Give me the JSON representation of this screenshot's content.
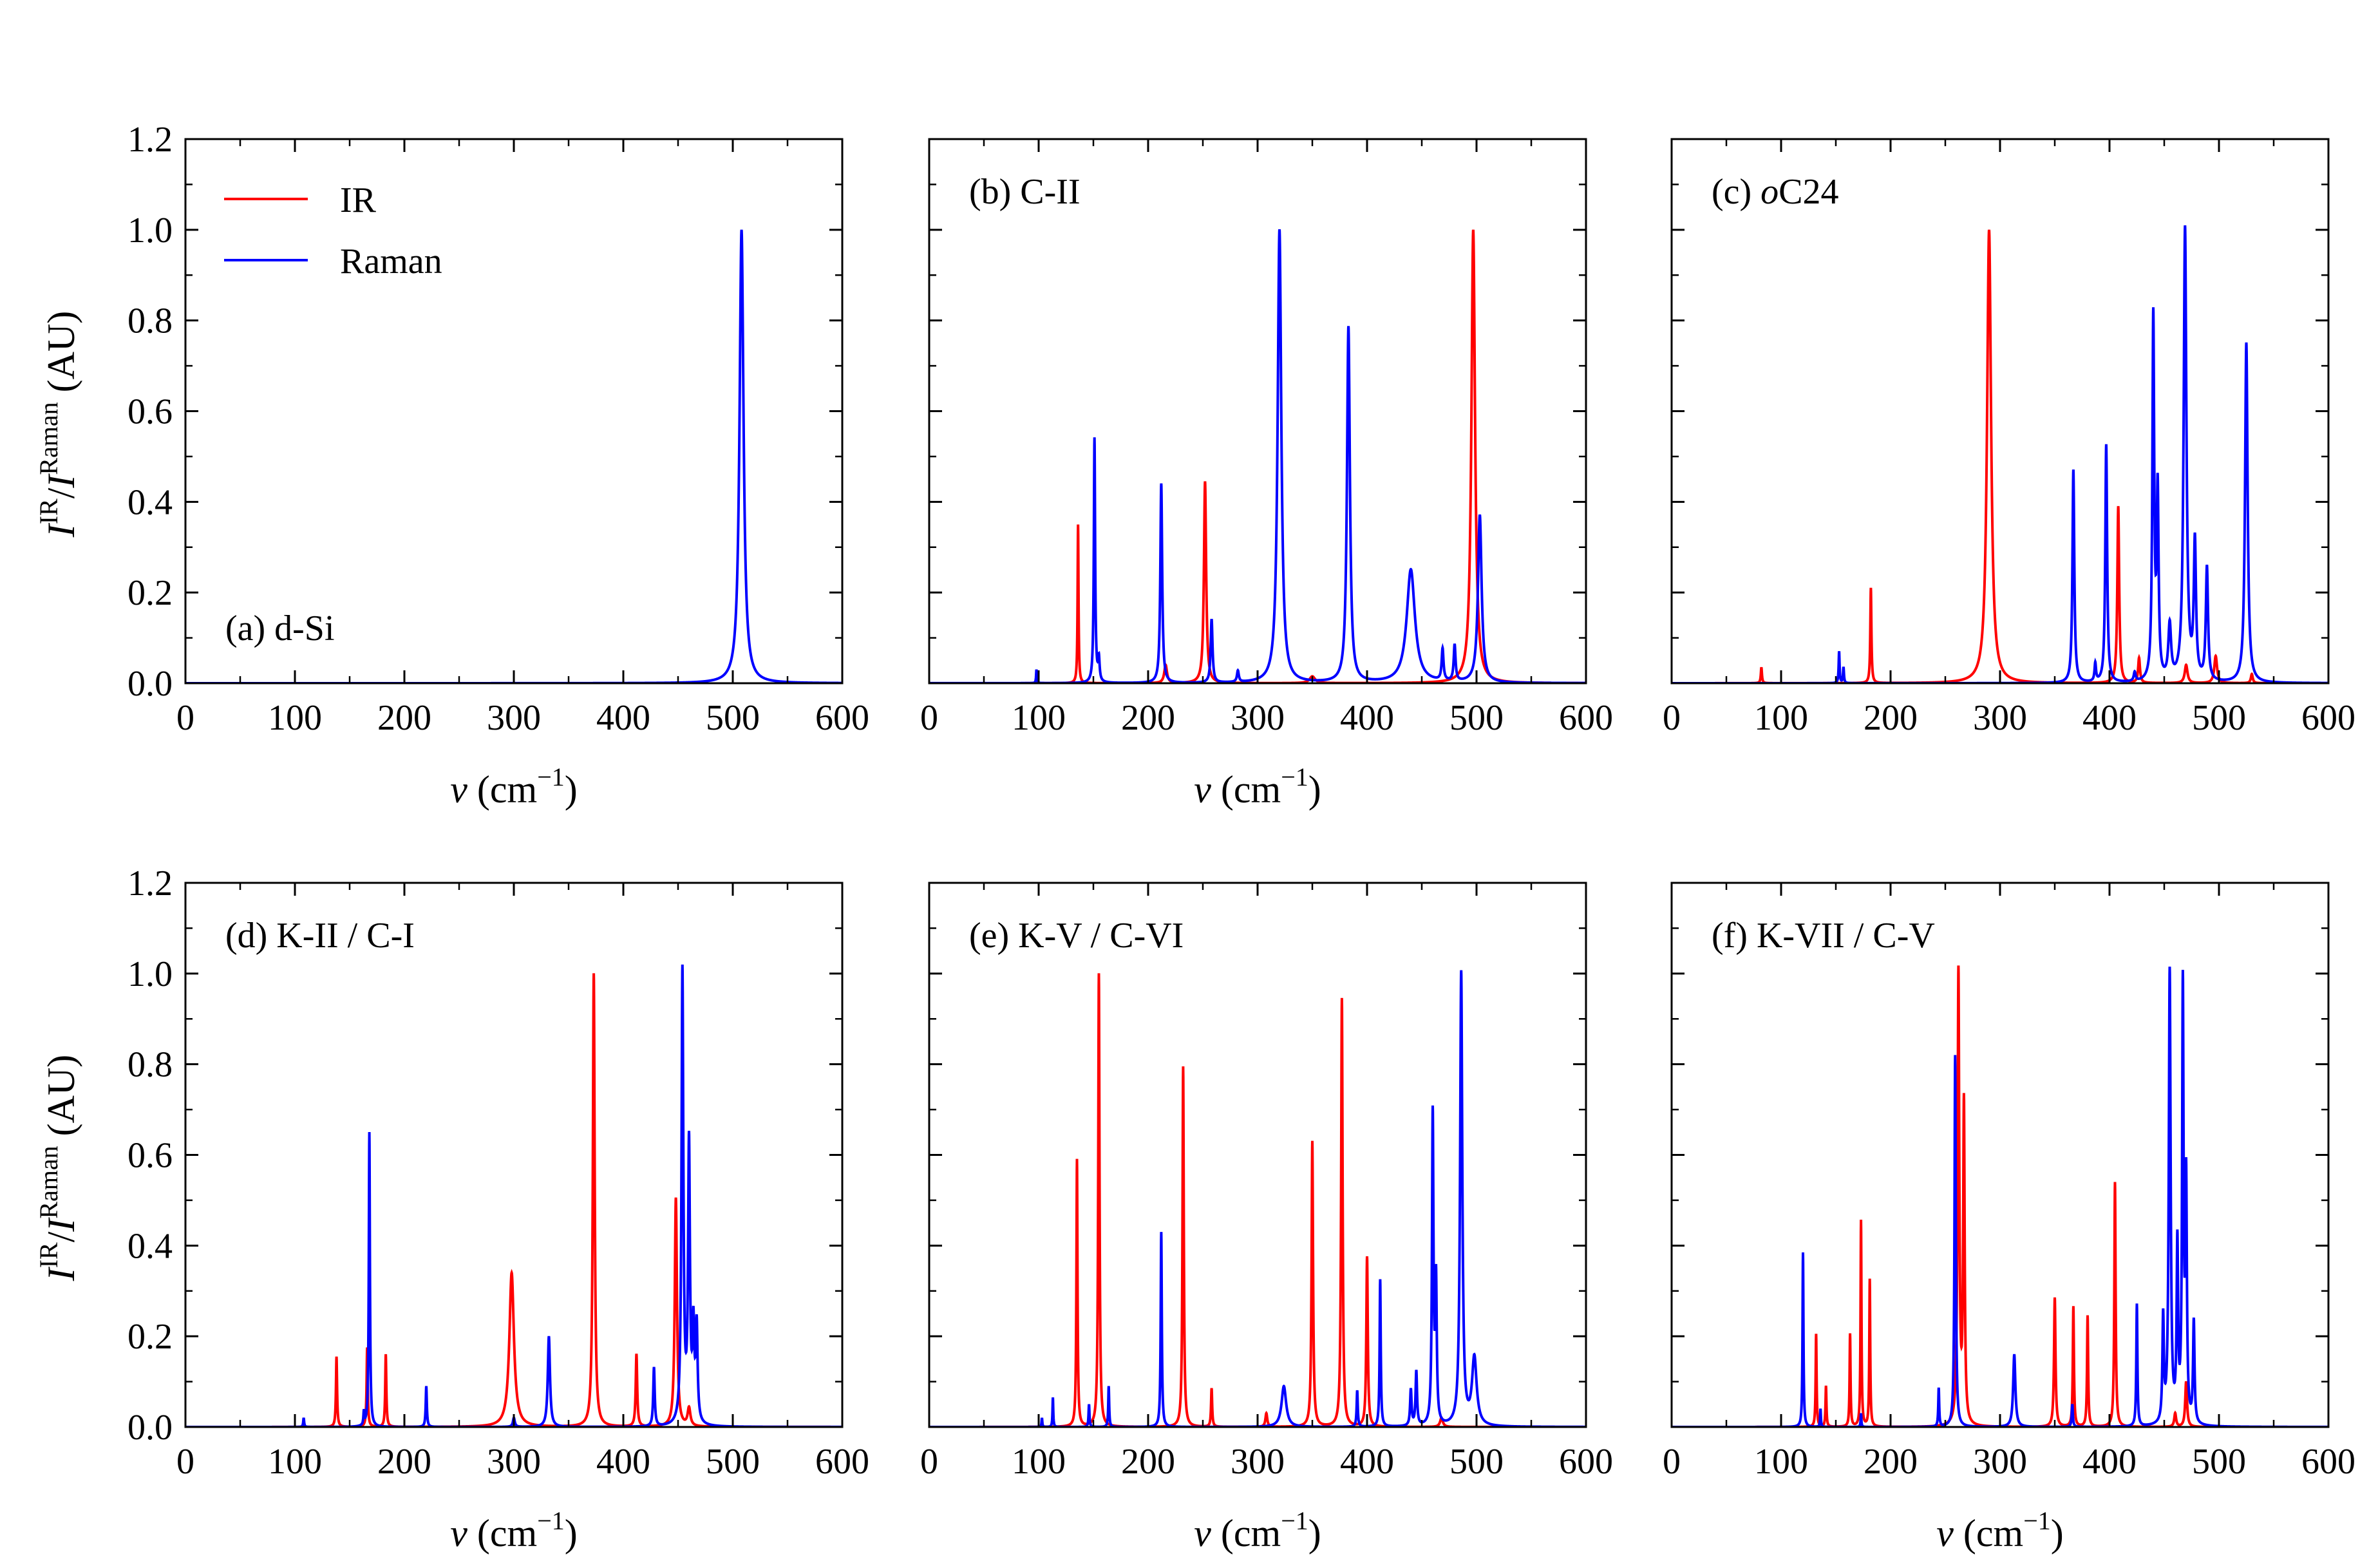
{
  "colors": {
    "ir": "#ff0000",
    "raman": "#0000ff",
    "axis": "#000000"
  },
  "legend": [
    {
      "name": "IR",
      "color": "#ff0000"
    },
    {
      "name": "Raman",
      "color": "#0000ff"
    }
  ],
  "axes": {
    "xlabel_var": "v",
    "xlabel_unit_open": " (cm",
    "xlabel_unit_exp": "−1",
    "xlabel_unit_close": ")",
    "ylabel_I1": "I",
    "ylabel_sup1": "IR",
    "ylabel_slash": "/",
    "ylabel_I2": "I",
    "ylabel_sup2": "Raman",
    "ylabel_unit": " (AU)",
    "xticks": [
      "0",
      "100",
      "200",
      "300",
      "400",
      "500",
      "600"
    ],
    "yticks": [
      "0.0",
      "0.2",
      "0.4",
      "0.6",
      "0.8",
      "1.0",
      "1.2"
    ]
  },
  "chart_data": [
    {
      "type": "line",
      "panel_label_prefix": "(a) ",
      "panel_label_main": "d-Si",
      "panel_label_italic_part": "",
      "xlim": [
        0,
        600
      ],
      "ylim": [
        0,
        1.2
      ],
      "xlabel": "v (cm−1)",
      "ylabel": "IIR/IRaman (AU)",
      "series": [
        {
          "name": "IR",
          "peaks": []
        },
        {
          "name": "Raman",
          "peaks": [
            [
              508,
              1.0,
              2.2
            ]
          ]
        }
      ]
    },
    {
      "type": "line",
      "panel_label_prefix": "(b) ",
      "panel_label_main": "C-II",
      "panel_label_italic_part": "",
      "xlim": [
        0,
        600
      ],
      "ylim": [
        0,
        1.2
      ],
      "xlabel": "v (cm−1)",
      "ylabel": "",
      "series": [
        {
          "name": "IR",
          "peaks": [
            [
              136,
              0.35,
              0.5
            ],
            [
              216,
              0.04,
              1.5
            ],
            [
              252,
              0.445,
              1.2
            ],
            [
              350,
              0.015,
              3
            ],
            [
              497,
              1.0,
              2.0
            ]
          ]
        },
        {
          "name": "Raman",
          "peaks": [
            [
              98,
              0.03,
              0.4
            ],
            [
              151,
              0.54,
              0.7
            ],
            [
              155,
              0.05,
              0.8
            ],
            [
              212,
              0.44,
              1.0
            ],
            [
              258,
              0.14,
              1.0
            ],
            [
              282,
              0.025,
              1
            ],
            [
              320,
              1.0,
              2.0
            ],
            [
              383,
              0.785,
              1.6
            ],
            [
              440,
              0.25,
              4.5
            ],
            [
              469,
              0.07,
              1
            ],
            [
              480,
              0.08,
              1
            ],
            [
              503,
              0.37,
              2.0
            ]
          ]
        }
      ]
    },
    {
      "type": "line",
      "panel_label_prefix": "(c) ",
      "panel_label_main": "C24",
      "panel_label_italic_part": "o",
      "xlim": [
        0,
        600
      ],
      "ylim": [
        0,
        1.2
      ],
      "xlabel": "",
      "ylabel": "",
      "series": [
        {
          "name": "IR",
          "peaks": [
            [
              82,
              0.035,
              0.6
            ],
            [
              182,
              0.21,
              0.6
            ],
            [
              290,
              1.0,
              2.2
            ],
            [
              408,
              0.39,
              1
            ],
            [
              427,
              0.055,
              1
            ],
            [
              470,
              0.04,
              1.5
            ],
            [
              497,
              0.06,
              1.5
            ],
            [
              530,
              0.02,
              1
            ]
          ]
        },
        {
          "name": "Raman",
          "peaks": [
            [
              153,
              0.07,
              0.5
            ],
            [
              157,
              0.035,
              0.5
            ],
            [
              367,
              0.47,
              1.0
            ],
            [
              387,
              0.04,
              0.8
            ],
            [
              397,
              0.525,
              1.0
            ],
            [
              423,
              0.02,
              1
            ],
            [
              440,
              0.8,
              1.0
            ],
            [
              444,
              0.41,
              1.0
            ],
            [
              455,
              0.12,
              1.5
            ],
            [
              469,
              1.0,
              1.5
            ],
            [
              478,
              0.3,
              1.2
            ],
            [
              489,
              0.25,
              1.2
            ],
            [
              525,
              0.75,
              1.4
            ]
          ]
        }
      ]
    },
    {
      "type": "line",
      "panel_label_prefix": "(d) ",
      "panel_label_main": "K-II / C-I",
      "panel_label_italic_part": "",
      "xlim": [
        0,
        600
      ],
      "ylim": [
        0,
        1.2
      ],
      "xlabel": "v (cm−1)",
      "ylabel": "IIR/IRaman (AU)",
      "series": [
        {
          "name": "IR",
          "peaks": [
            [
              138,
              0.155,
              0.6
            ],
            [
              166,
              0.175,
              0.6
            ],
            [
              183,
              0.16,
              0.6
            ],
            [
              298,
              0.34,
              2.5
            ],
            [
              373,
              1.0,
              1.0
            ],
            [
              412,
              0.16,
              0.8
            ],
            [
              448,
              0.505,
              1.2
            ],
            [
              460,
              0.04,
              1.5
            ]
          ]
        },
        {
          "name": "Raman",
          "peaks": [
            [
              108,
              0.02,
              0.5
            ],
            [
              163,
              0.03,
              0.5
            ],
            [
              168,
              0.65,
              0.6
            ],
            [
              220,
              0.09,
              0.6
            ],
            [
              300,
              0.02,
              1
            ],
            [
              332,
              0.2,
              1.2
            ],
            [
              428,
              0.13,
              0.8
            ],
            [
              454,
              1.0,
              1.0
            ],
            [
              460,
              0.61,
              1.0
            ],
            [
              464,
              0.2,
              1.0
            ],
            [
              467,
              0.21,
              1.0
            ]
          ]
        }
      ]
    },
    {
      "type": "line",
      "panel_label_prefix": "(e) ",
      "panel_label_main": "K-V / C-VI",
      "panel_label_italic_part": "",
      "xlim": [
        0,
        600
      ],
      "ylim": [
        0,
        1.2
      ],
      "xlabel": "v (cm−1)",
      "ylabel": "",
      "series": [
        {
          "name": "IR",
          "peaks": [
            [
              135,
              0.59,
              0.6
            ],
            [
              155,
              1.0,
              0.7
            ],
            [
              232,
              0.795,
              0.7
            ],
            [
              258,
              0.085,
              0.6
            ],
            [
              308,
              0.03,
              1
            ],
            [
              350,
              0.63,
              0.8
            ],
            [
              377,
              0.945,
              0.8
            ],
            [
              400,
              0.375,
              0.8
            ],
            [
              468,
              0.02,
              1.5
            ]
          ]
        },
        {
          "name": "Raman",
          "peaks": [
            [
              103,
              0.02,
              0.4
            ],
            [
              113,
              0.065,
              0.4
            ],
            [
              146,
              0.05,
              0.5
            ],
            [
              164,
              0.09,
              0.5
            ],
            [
              212,
              0.43,
              0.6
            ],
            [
              324,
              0.09,
              2.5
            ],
            [
              391,
              0.08,
              0.6
            ],
            [
              412,
              0.325,
              0.6
            ],
            [
              440,
              0.08,
              0.8
            ],
            [
              445,
              0.12,
              0.8
            ],
            [
              460,
              0.685,
              0.8
            ],
            [
              463,
              0.31,
              0.8
            ],
            [
              486,
              1.0,
              1.2
            ],
            [
              498,
              0.15,
              2.5
            ]
          ]
        }
      ]
    },
    {
      "type": "line",
      "panel_label_prefix": "(f) ",
      "panel_label_main": "K-VII / C-V",
      "panel_label_italic_part": "",
      "xlim": [
        0,
        600
      ],
      "ylim": [
        0,
        1.2
      ],
      "xlabel": "v (cm−1)",
      "ylabel": "",
      "series": [
        {
          "name": "IR",
          "peaks": [
            [
              132,
              0.205,
              0.5
            ],
            [
              141,
              0.09,
              0.5
            ],
            [
              163,
              0.205,
              0.5
            ],
            [
              173,
              0.455,
              0.5
            ],
            [
              181,
              0.325,
              0.5
            ],
            [
              262,
              1.0,
              0.9
            ],
            [
              267,
              0.705,
              0.8
            ],
            [
              350,
              0.285,
              0.8
            ],
            [
              367,
              0.265,
              0.6
            ],
            [
              380,
              0.245,
              0.6
            ],
            [
              405,
              0.54,
              0.7
            ],
            [
              460,
              0.03,
              1
            ],
            [
              470,
              0.1,
              1
            ]
          ]
        },
        {
          "name": "Raman",
          "peaks": [
            [
              120,
              0.385,
              0.5
            ],
            [
              136,
              0.04,
              0.4
            ],
            [
              173,
              0.03,
              0.4
            ],
            [
              244,
              0.085,
              0.5
            ],
            [
              259,
              0.82,
              0.7
            ],
            [
              313,
              0.16,
              1.2
            ],
            [
              366,
              0.05,
              0.6
            ],
            [
              425,
              0.27,
              0.6
            ],
            [
              449,
              0.23,
              0.8
            ],
            [
              455,
              1.0,
              1.0
            ],
            [
              462,
              0.385,
              0.8
            ],
            [
              467,
              0.955,
              0.8
            ],
            [
              470,
              0.52,
              0.8
            ],
            [
              477,
              0.225,
              0.8
            ]
          ]
        }
      ]
    }
  ]
}
